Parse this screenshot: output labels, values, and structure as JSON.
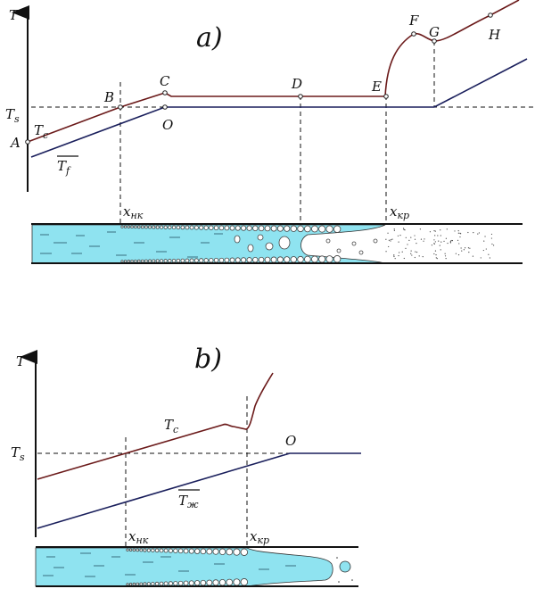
{
  "colors": {
    "wall_temperature": "#6b1a1a",
    "fluid_temperature": "#1a1f5c",
    "liquid": "#8fe3f0"
  },
  "diagram_a": {
    "title": "a)",
    "axis_label": "T",
    "saturation_label": "T",
    "saturation_sub": "s",
    "wall_label": "T",
    "wall_sub": "c",
    "fluid_label": "T",
    "fluid_sub": "f",
    "points": {
      "A": "A",
      "B": "B",
      "C": "C",
      "D": "D",
      "E": "E",
      "F": "F",
      "G": "G",
      "H": "H",
      "O": "O"
    },
    "x_nk": "x",
    "x_nk_sub": "нк",
    "x_kr": "x",
    "x_kr_sub": "кр"
  },
  "diagram_b": {
    "title": "b)",
    "axis_label": "T",
    "saturation_label": "T",
    "saturation_sub": "s",
    "wall_label": "T",
    "wall_sub": "c",
    "fluid_label": "T",
    "fluid_sub": "ж",
    "point_O": "O",
    "x_nk": "x",
    "x_nk_sub": "нк",
    "x_kr": "x",
    "x_kr_sub": "кр"
  }
}
